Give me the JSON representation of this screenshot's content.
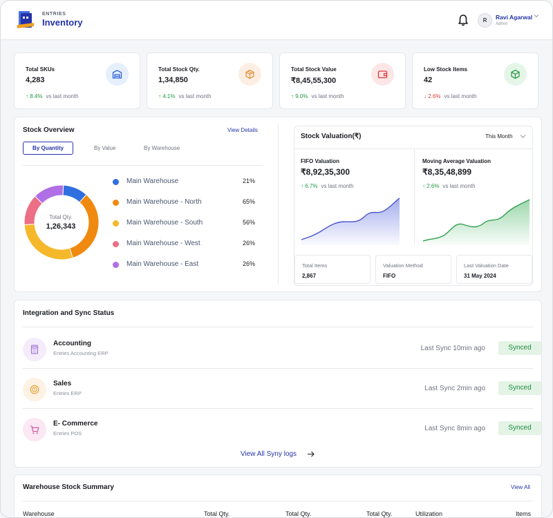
{
  "app": {
    "brand_small": "ENTRIES",
    "brand_big": "Inventory"
  },
  "user": {
    "initial": "R",
    "name": "Ravi Agarwal",
    "role": "Admin"
  },
  "kpis": [
    {
      "label": "Total SKUs",
      "value": "4,283",
      "trend": "↑ 8.4%",
      "trend_dir": "up",
      "vs": "vs last month",
      "icon": "warehouse-icon",
      "icon_bg": "#e6effc",
      "icon_color": "#2f63d9"
    },
    {
      "label": "Total Stock Qty.",
      "value": "1,34,850",
      "trend": "↑ 4.1%",
      "trend_dir": "up",
      "vs": "vs last month",
      "icon": "box-icon",
      "icon_bg": "#fdeee3",
      "icon_color": "#e08a2f"
    },
    {
      "label": "Total Stock Value",
      "value": "₹8,45,55,300",
      "trend": "↑ 9.0%",
      "trend_dir": "up",
      "vs": "vs last month",
      "icon": "wallet-icon",
      "icon_bg": "#fde6e6",
      "icon_color": "#d83a3a"
    },
    {
      "label": "Low Stock Items",
      "value": "42",
      "trend": "↓ 2.6%",
      "trend_dir": "down",
      "vs": "vs last month",
      "icon": "cube-icon",
      "icon_bg": "#e5f6e8",
      "icon_color": "#2e9e4b"
    }
  ],
  "stock_overview": {
    "title": "Stock Overview",
    "view_details": "View Details",
    "tabs": [
      "By Quantity",
      "By Value",
      "By Warehouse"
    ],
    "total_label": "Total Qty.",
    "total_value": "1,26,343",
    "warehouses": [
      {
        "name": "Main Warehouse",
        "pct": "21%",
        "color": "#2f6fe0"
      },
      {
        "name": "Main Warehouse - North",
        "pct": "65%",
        "color": "#f0890f"
      },
      {
        "name": "Main Warehouse - South",
        "pct": "56%",
        "color": "#f5b82a"
      },
      {
        "name": "Main Warehouse - West",
        "pct": "26%",
        "color": "#ec6f86"
      },
      {
        "name": "Main Warehouse - East",
        "pct": "26%",
        "color": "#b06fe6"
      }
    ]
  },
  "chart_data": {
    "type": "pie",
    "categories": [
      "Main Warehouse",
      "Main Warehouse - North",
      "Main Warehouse - South",
      "Main Warehouse - West",
      "Main Warehouse - East"
    ],
    "values": [
      21,
      65,
      56,
      26,
      26
    ],
    "title": "Stock Overview",
    "legend": "right"
  },
  "valuation": {
    "title": "Stock Valuation(₹)",
    "period": "This Month",
    "fifo": {
      "label": "FIFO Valuation",
      "value": "₹8,92,35,300",
      "trend": "↑ 6.7%",
      "vs": "vs last month",
      "color": "#5b6be0"
    },
    "moving": {
      "label": "Moving Average Valuation",
      "value": "₹8,35,48,899",
      "trend": "↑ 2.6%",
      "vs": "vs last month",
      "color": "#3bb05a"
    },
    "stats": [
      {
        "label": "Total Items",
        "value": "2,867"
      },
      {
        "label": "Valuation Method",
        "value": "FIFO"
      },
      {
        "label": "Last Valuation Date",
        "value": "31 May 2024"
      }
    ]
  },
  "integration": {
    "title": "Integration and Sync Status",
    "rows": [
      {
        "name": "Accounting",
        "sub": "Entries Accounting ERP",
        "time": "Last Sync 10min ago",
        "status": "Synced",
        "icon": "calculator-icon",
        "icon_bg": "#f4ecfb",
        "icon_color": "#9a6fd0"
      },
      {
        "name": "Sales",
        "sub": "Entries ERP",
        "time": "Last Sync 2min ago",
        "status": "Synced",
        "icon": "coin-icon",
        "icon_bg": "#fdf2e3",
        "icon_color": "#e3a02f"
      },
      {
        "name": "E- Commerce",
        "sub": "Entries POS",
        "time": "Last Sync 8min ago",
        "status": "Synced",
        "icon": "cart-icon",
        "icon_bg": "#fbe8f3",
        "icon_color": "#c64b97"
      }
    ],
    "view_all": "View All Syny logs"
  },
  "warehouse_summary": {
    "title": "Warehouse Stock Summary",
    "view_all": "View All",
    "columns": [
      "Warehouse",
      "Total Qty.",
      "Total Qty.",
      "Total Qty.",
      "Utilization",
      "Items"
    ]
  }
}
